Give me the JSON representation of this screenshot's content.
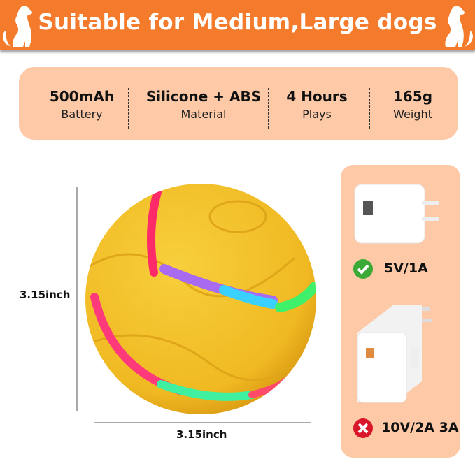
{
  "banner": {
    "title": "Suitable for Medium,Large dogs",
    "color": "#f47a2c",
    "icons": [
      "dog-silhouette-icon",
      "dog-silhouette-icon"
    ]
  },
  "specs": [
    {
      "value": "500mAh",
      "label": "Battery"
    },
    {
      "value": "Silicone + ABS",
      "label": "Material"
    },
    {
      "value": "4 Hours",
      "label": "Plays"
    },
    {
      "value": "165g",
      "label": "Weight"
    }
  ],
  "product": {
    "height": "3.15inch",
    "width": "3.15inch",
    "ball_color": "#f2c12e"
  },
  "chargers": [
    {
      "rating": "5V/1A",
      "status": "check-icon",
      "status_color": "#3aa935"
    },
    {
      "rating": "10V/2A 3A",
      "status": "cross-icon",
      "status_color": "#d9172b"
    }
  ]
}
